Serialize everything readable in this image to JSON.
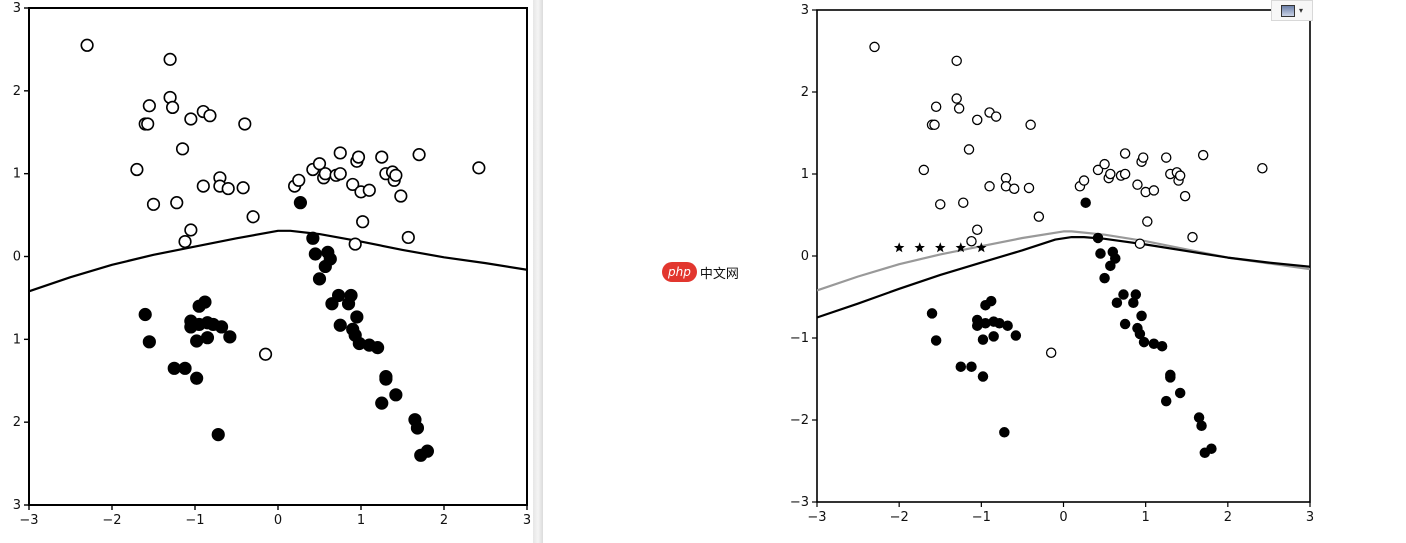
{
  "watermark": {
    "badge": "php",
    "text": "中文网"
  },
  "toolbar": {
    "icon": "image-icon",
    "chevron": "▾"
  },
  "chart_data": [
    {
      "type": "scatter",
      "title": "",
      "xlabel": "",
      "ylabel": "",
      "xlim": [
        -3,
        3
      ],
      "ylim": [
        -3,
        3
      ],
      "xticks": [
        "−3",
        "−2",
        "−1",
        "0",
        "1",
        "2",
        "3"
      ],
      "yticks": [
        "3",
        "2",
        "1",
        "0",
        "1",
        "2",
        "3"
      ],
      "series": [
        {
          "marker": "open-circle",
          "color": "#000000",
          "points": [
            [
              -2.3,
              2.55
            ],
            [
              -1.3,
              2.38
            ],
            [
              -1.3,
              1.92
            ],
            [
              -1.27,
              1.8
            ],
            [
              -1.55,
              1.82
            ],
            [
              -1.6,
              1.6
            ],
            [
              -1.57,
              1.6
            ],
            [
              -1.05,
              1.66
            ],
            [
              -0.9,
              1.75
            ],
            [
              -0.82,
              1.7
            ],
            [
              -0.4,
              1.6
            ],
            [
              -1.15,
              1.3
            ],
            [
              -1.7,
              1.05
            ],
            [
              -0.7,
              0.95
            ],
            [
              -0.9,
              0.85
            ],
            [
              -0.7,
              0.85
            ],
            [
              -0.6,
              0.82
            ],
            [
              -0.42,
              0.83
            ],
            [
              -1.22,
              0.65
            ],
            [
              -1.5,
              0.63
            ],
            [
              -0.3,
              0.48
            ],
            [
              -1.05,
              0.32
            ],
            [
              -1.12,
              0.18
            ],
            [
              0.2,
              0.85
            ],
            [
              0.25,
              0.92
            ],
            [
              0.42,
              1.05
            ],
            [
              0.5,
              1.12
            ],
            [
              0.55,
              0.95
            ],
            [
              0.57,
              1.0
            ],
            [
              0.7,
              0.98
            ],
            [
              0.75,
              1.0
            ],
            [
              0.75,
              1.25
            ],
            [
              0.9,
              0.87
            ],
            [
              0.95,
              1.15
            ],
            [
              0.97,
              1.2
            ],
            [
              1.0,
              0.78
            ],
            [
              1.1,
              0.8
            ],
            [
              1.25,
              1.2
            ],
            [
              1.3,
              1.0
            ],
            [
              1.38,
              1.02
            ],
            [
              1.4,
              0.92
            ],
            [
              1.42,
              0.98
            ],
            [
              1.48,
              0.73
            ],
            [
              1.7,
              1.23
            ],
            [
              2.42,
              1.07
            ],
            [
              1.02,
              0.42
            ],
            [
              0.93,
              0.15
            ],
            [
              1.57,
              0.23
            ],
            [
              -0.15,
              -1.18
            ]
          ]
        },
        {
          "marker": "filled-circle",
          "color": "#000000",
          "points": [
            [
              0.27,
              0.65
            ],
            [
              0.42,
              0.22
            ],
            [
              0.45,
              0.03
            ],
            [
              0.57,
              -0.12
            ],
            [
              0.6,
              0.05
            ],
            [
              0.63,
              -0.03
            ],
            [
              0.5,
              -0.27
            ],
            [
              0.65,
              -0.57
            ],
            [
              0.73,
              -0.47
            ],
            [
              0.85,
              -0.57
            ],
            [
              0.88,
              -0.47
            ],
            [
              0.75,
              -0.83
            ],
            [
              0.9,
              -0.88
            ],
            [
              0.93,
              -0.95
            ],
            [
              0.95,
              -0.73
            ],
            [
              0.98,
              -1.05
            ],
            [
              1.1,
              -1.07
            ],
            [
              1.2,
              -1.1
            ],
            [
              1.3,
              -1.45
            ],
            [
              1.3,
              -1.48
            ],
            [
              1.25,
              -1.77
            ],
            [
              1.42,
              -1.67
            ],
            [
              1.65,
              -1.97
            ],
            [
              1.68,
              -2.07
            ],
            [
              1.72,
              -2.4
            ],
            [
              1.8,
              -2.35
            ],
            [
              -1.6,
              -0.7
            ],
            [
              -1.55,
              -1.03
            ],
            [
              -0.95,
              -0.6
            ],
            [
              -0.88,
              -0.55
            ],
            [
              -1.05,
              -0.78
            ],
            [
              -1.05,
              -0.85
            ],
            [
              -0.95,
              -0.82
            ],
            [
              -0.85,
              -0.8
            ],
            [
              -0.78,
              -0.82
            ],
            [
              -0.68,
              -0.85
            ],
            [
              -0.98,
              -1.02
            ],
            [
              -0.85,
              -0.98
            ],
            [
              -0.58,
              -0.97
            ],
            [
              -1.25,
              -1.35
            ],
            [
              -1.12,
              -1.35
            ],
            [
              -0.98,
              -1.47
            ],
            [
              -0.72,
              -2.15
            ]
          ]
        },
        {
          "marker": "line",
          "color": "#000000",
          "points": [
            [
              -3,
              -0.42
            ],
            [
              -2.5,
              -0.25
            ],
            [
              -2,
              -0.1
            ],
            [
              -1.5,
              0.02
            ],
            [
              -1,
              0.12
            ],
            [
              -0.5,
              0.22
            ],
            [
              0,
              0.31
            ],
            [
              0.15,
              0.31
            ],
            [
              0.5,
              0.27
            ],
            [
              1,
              0.18
            ],
            [
              1.5,
              0.08
            ],
            [
              2,
              -0.01
            ],
            [
              2.5,
              -0.08
            ],
            [
              3,
              -0.16
            ]
          ]
        }
      ]
    },
    {
      "type": "scatter",
      "title": "",
      "xlabel": "",
      "ylabel": "",
      "xlim": [
        -3,
        3
      ],
      "ylim": [
        -3,
        3
      ],
      "xticks": [
        "−3",
        "−2",
        "−1",
        "0",
        "1",
        "2",
        "3"
      ],
      "yticks": [
        "3",
        "2",
        "1",
        "0",
        "−1",
        "−2",
        "−3"
      ],
      "series": [
        {
          "marker": "open-circle",
          "color": "#000000",
          "points": [
            [
              -2.3,
              2.55
            ],
            [
              -1.3,
              2.38
            ],
            [
              -1.3,
              1.92
            ],
            [
              -1.27,
              1.8
            ],
            [
              -1.55,
              1.82
            ],
            [
              -1.6,
              1.6
            ],
            [
              -1.57,
              1.6
            ],
            [
              -1.05,
              1.66
            ],
            [
              -0.9,
              1.75
            ],
            [
              -0.82,
              1.7
            ],
            [
              -0.4,
              1.6
            ],
            [
              -1.15,
              1.3
            ],
            [
              -1.7,
              1.05
            ],
            [
              -0.7,
              0.95
            ],
            [
              -0.9,
              0.85
            ],
            [
              -0.7,
              0.85
            ],
            [
              -0.6,
              0.82
            ],
            [
              -0.42,
              0.83
            ],
            [
              -1.22,
              0.65
            ],
            [
              -1.5,
              0.63
            ],
            [
              -0.3,
              0.48
            ],
            [
              -1.05,
              0.32
            ],
            [
              -1.12,
              0.18
            ],
            [
              0.2,
              0.85
            ],
            [
              0.25,
              0.92
            ],
            [
              0.42,
              1.05
            ],
            [
              0.5,
              1.12
            ],
            [
              0.55,
              0.95
            ],
            [
              0.57,
              1.0
            ],
            [
              0.7,
              0.98
            ],
            [
              0.75,
              1.0
            ],
            [
              0.75,
              1.25
            ],
            [
              0.9,
              0.87
            ],
            [
              0.95,
              1.15
            ],
            [
              0.97,
              1.2
            ],
            [
              1.0,
              0.78
            ],
            [
              1.1,
              0.8
            ],
            [
              1.25,
              1.2
            ],
            [
              1.3,
              1.0
            ],
            [
              1.38,
              1.02
            ],
            [
              1.4,
              0.92
            ],
            [
              1.42,
              0.98
            ],
            [
              1.48,
              0.73
            ],
            [
              1.7,
              1.23
            ],
            [
              2.42,
              1.07
            ],
            [
              1.02,
              0.42
            ],
            [
              0.93,
              0.15
            ],
            [
              1.57,
              0.23
            ],
            [
              -0.15,
              -1.18
            ]
          ]
        },
        {
          "marker": "filled-circle",
          "color": "#000000",
          "points": [
            [
              0.27,
              0.65
            ],
            [
              0.42,
              0.22
            ],
            [
              0.45,
              0.03
            ],
            [
              0.57,
              -0.12
            ],
            [
              0.6,
              0.05
            ],
            [
              0.63,
              -0.03
            ],
            [
              0.5,
              -0.27
            ],
            [
              0.65,
              -0.57
            ],
            [
              0.73,
              -0.47
            ],
            [
              0.85,
              -0.57
            ],
            [
              0.88,
              -0.47
            ],
            [
              0.75,
              -0.83
            ],
            [
              0.9,
              -0.88
            ],
            [
              0.93,
              -0.95
            ],
            [
              0.95,
              -0.73
            ],
            [
              0.98,
              -1.05
            ],
            [
              1.1,
              -1.07
            ],
            [
              1.2,
              -1.1
            ],
            [
              1.3,
              -1.45
            ],
            [
              1.3,
              -1.48
            ],
            [
              1.25,
              -1.77
            ],
            [
              1.42,
              -1.67
            ],
            [
              1.65,
              -1.97
            ],
            [
              1.68,
              -2.07
            ],
            [
              1.72,
              -2.4
            ],
            [
              1.8,
              -2.35
            ],
            [
              -1.6,
              -0.7
            ],
            [
              -1.55,
              -1.03
            ],
            [
              -0.95,
              -0.6
            ],
            [
              -0.88,
              -0.55
            ],
            [
              -1.05,
              -0.78
            ],
            [
              -1.05,
              -0.85
            ],
            [
              -0.95,
              -0.82
            ],
            [
              -0.85,
              -0.8
            ],
            [
              -0.78,
              -0.82
            ],
            [
              -0.68,
              -0.85
            ],
            [
              -0.98,
              -1.02
            ],
            [
              -0.85,
              -0.98
            ],
            [
              -0.58,
              -0.97
            ],
            [
              -1.25,
              -1.35
            ],
            [
              -1.12,
              -1.35
            ],
            [
              -0.98,
              -1.47
            ],
            [
              -0.72,
              -2.15
            ]
          ]
        },
        {
          "marker": "star",
          "color": "#000000",
          "points": [
            [
              -2,
              0.1
            ],
            [
              -1.75,
              0.1
            ],
            [
              -1.5,
              0.1
            ],
            [
              -1.25,
              0.1
            ],
            [
              -1,
              0.1
            ]
          ]
        },
        {
          "marker": "line",
          "color": "#999999",
          "points": [
            [
              -3,
              -0.42
            ],
            [
              -2.5,
              -0.25
            ],
            [
              -2,
              -0.1
            ],
            [
              -1.5,
              0.02
            ],
            [
              -1,
              0.12
            ],
            [
              -0.5,
              0.22
            ],
            [
              0,
              0.3
            ],
            [
              0.1,
              0.3
            ],
            [
              0.5,
              0.26
            ],
            [
              1,
              0.18
            ],
            [
              1.5,
              0.08
            ],
            [
              2,
              -0.02
            ],
            [
              2.5,
              -0.09
            ],
            [
              3,
              -0.16
            ]
          ]
        },
        {
          "marker": "line",
          "color": "#000000",
          "points": [
            [
              -3,
              -0.75
            ],
            [
              -2.5,
              -0.58
            ],
            [
              -2,
              -0.4
            ],
            [
              -1.5,
              -0.23
            ],
            [
              -1,
              -0.08
            ],
            [
              -0.5,
              0.07
            ],
            [
              -0.1,
              0.2
            ],
            [
              0.1,
              0.23
            ],
            [
              0.25,
              0.23
            ],
            [
              0.5,
              0.21
            ],
            [
              1,
              0.14
            ],
            [
              1.5,
              0.06
            ],
            [
              2,
              -0.02
            ],
            [
              2.5,
              -0.08
            ],
            [
              3,
              -0.13
            ]
          ]
        }
      ]
    }
  ]
}
